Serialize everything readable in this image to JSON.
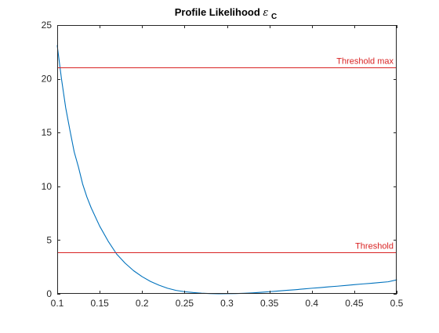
{
  "chart_data": {
    "type": "line",
    "title": {
      "main": "Profile Likelihood ",
      "symbol": "ε",
      "subscript": "C"
    },
    "xlabel": "",
    "ylabel": "",
    "xlim": [
      0.1,
      0.5
    ],
    "ylim": [
      0,
      25
    ],
    "x_ticks": [
      "0.1",
      "0.15",
      "0.2",
      "0.25",
      "0.3",
      "0.35",
      "0.4",
      "0.45",
      "0.5"
    ],
    "y_ticks": [
      "0",
      "5",
      "10",
      "15",
      "20",
      "25"
    ],
    "grid": false,
    "box": true,
    "series": [
      {
        "color": "#0072BD",
        "x": [
          0.1,
          0.105,
          0.11,
          0.115,
          0.12,
          0.125,
          0.13,
          0.135,
          0.14,
          0.15,
          0.16,
          0.17,
          0.18,
          0.19,
          0.2,
          0.21,
          0.22,
          0.23,
          0.24,
          0.25,
          0.26,
          0.27,
          0.28,
          0.29,
          0.3,
          0.31,
          0.32,
          0.33,
          0.34,
          0.35,
          0.36,
          0.37,
          0.38,
          0.39,
          0.4,
          0.41,
          0.42,
          0.43,
          0.44,
          0.45,
          0.46,
          0.47,
          0.48,
          0.49,
          0.5
        ],
        "y": [
          23.1,
          20.0,
          17.3,
          15.2,
          13.2,
          11.8,
          10.2,
          9.0,
          8.0,
          6.3,
          4.9,
          3.7,
          2.85,
          2.15,
          1.6,
          1.15,
          0.8,
          0.52,
          0.32,
          0.2,
          0.12,
          0.06,
          0.02,
          0.0,
          0.01,
          0.02,
          0.05,
          0.09,
          0.14,
          0.2,
          0.26,
          0.32,
          0.38,
          0.45,
          0.52,
          0.58,
          0.65,
          0.71,
          0.78,
          0.85,
          0.92,
          0.98,
          1.05,
          1.12,
          1.3
        ]
      }
    ],
    "reference_lines": [
      {
        "id": "threshold_max",
        "label": "Threshold max",
        "y": 21.1,
        "color": "#D92323"
      },
      {
        "id": "threshold",
        "label": "Threshold",
        "y": 3.84,
        "color": "#D92323"
      }
    ]
  }
}
